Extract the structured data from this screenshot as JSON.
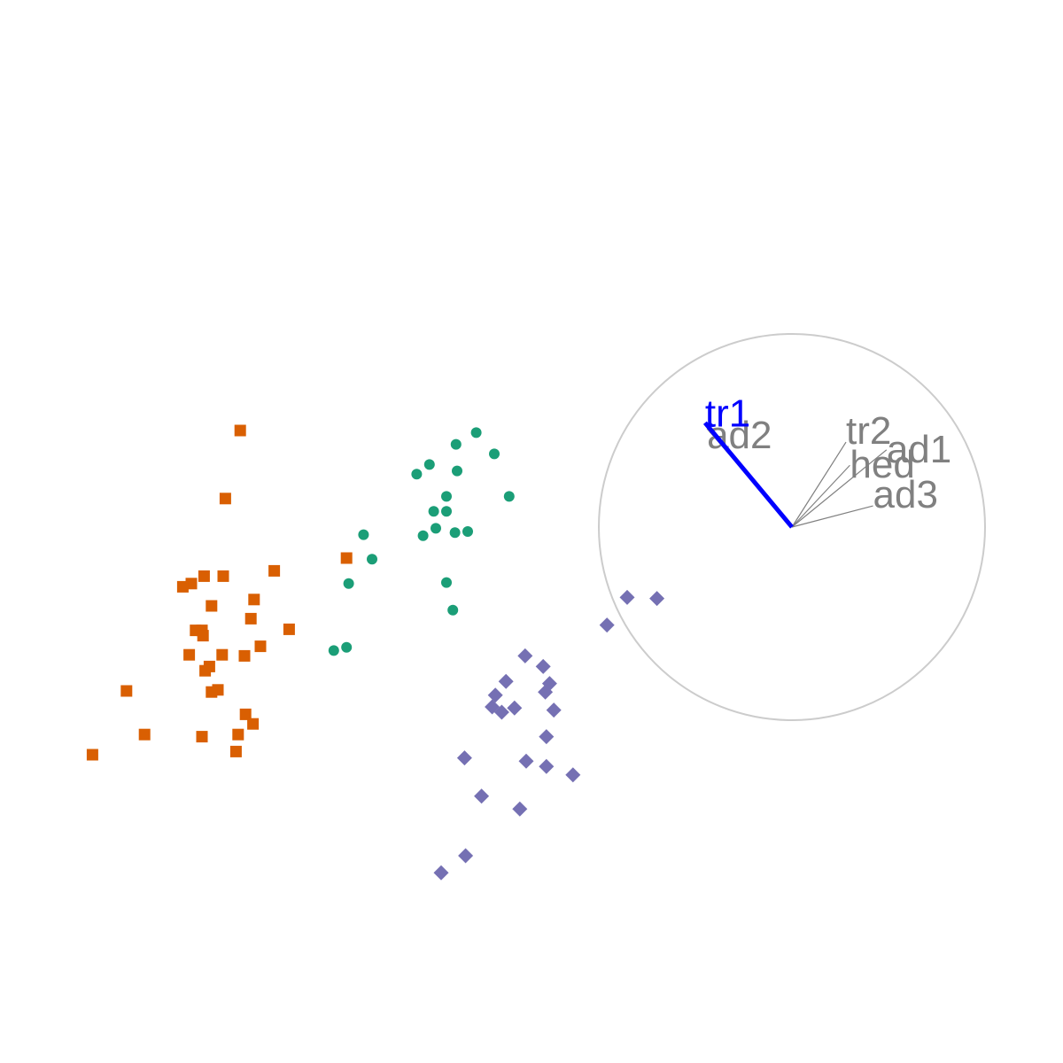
{
  "chart_data": [
    {
      "type": "scatter",
      "title": "",
      "xlabel": "",
      "ylabel": "",
      "grid": false,
      "legend": "none",
      "series": [
        {
          "marker": "square",
          "color": "#D95F02",
          "points": [
            [
              0.226,
              0.405
            ],
            [
              0.212,
              0.469
            ],
            [
              0.258,
              0.537
            ],
            [
              0.192,
              0.542
            ],
            [
              0.21,
              0.542
            ],
            [
              0.18,
              0.549
            ],
            [
              0.172,
              0.552
            ],
            [
              0.239,
              0.564
            ],
            [
              0.199,
              0.57
            ],
            [
              0.236,
              0.582
            ],
            [
              0.272,
              0.592
            ],
            [
              0.184,
              0.593
            ],
            [
              0.19,
              0.593
            ],
            [
              0.191,
              0.598
            ],
            [
              0.245,
              0.608
            ],
            [
              0.178,
              0.616
            ],
            [
              0.209,
              0.616
            ],
            [
              0.23,
              0.617
            ],
            [
              0.197,
              0.627
            ],
            [
              0.193,
              0.631
            ],
            [
              0.119,
              0.65
            ],
            [
              0.205,
              0.649
            ],
            [
              0.199,
              0.651
            ],
            [
              0.231,
              0.672
            ],
            [
              0.238,
              0.681
            ],
            [
              0.136,
              0.691
            ],
            [
              0.19,
              0.693
            ],
            [
              0.224,
              0.691
            ],
            [
              0.222,
              0.707
            ],
            [
              0.087,
              0.71
            ],
            [
              0.326,
              0.525
            ]
          ]
        },
        {
          "marker": "circle",
          "color": "#1B9E77",
          "points": [
            [
              0.448,
              0.407
            ],
            [
              0.429,
              0.418
            ],
            [
              0.465,
              0.427
            ],
            [
              0.404,
              0.437
            ],
            [
              0.392,
              0.446
            ],
            [
              0.43,
              0.443
            ],
            [
              0.42,
              0.467
            ],
            [
              0.479,
              0.467
            ],
            [
              0.408,
              0.481
            ],
            [
              0.42,
              0.481
            ],
            [
              0.41,
              0.497
            ],
            [
              0.428,
              0.501
            ],
            [
              0.44,
              0.5
            ],
            [
              0.398,
              0.504
            ],
            [
              0.342,
              0.503
            ],
            [
              0.35,
              0.526
            ],
            [
              0.328,
              0.549
            ],
            [
              0.42,
              0.548
            ],
            [
              0.426,
              0.574
            ],
            [
              0.326,
              0.609
            ],
            [
              0.314,
              0.612
            ]
          ]
        },
        {
          "marker": "diamond",
          "color": "#7570B3",
          "points": [
            [
              0.59,
              0.562
            ],
            [
              0.618,
              0.563
            ],
            [
              0.571,
              0.588
            ],
            [
              0.494,
              0.617
            ],
            [
              0.511,
              0.627
            ],
            [
              0.476,
              0.641
            ],
            [
              0.517,
              0.643
            ],
            [
              0.513,
              0.651
            ],
            [
              0.466,
              0.654
            ],
            [
              0.463,
              0.665
            ],
            [
              0.484,
              0.666
            ],
            [
              0.472,
              0.67
            ],
            [
              0.521,
              0.668
            ],
            [
              0.514,
              0.693
            ],
            [
              0.437,
              0.713
            ],
            [
              0.495,
              0.716
            ],
            [
              0.514,
              0.721
            ],
            [
              0.539,
              0.729
            ],
            [
              0.453,
              0.749
            ],
            [
              0.489,
              0.761
            ],
            [
              0.438,
              0.805
            ],
            [
              0.415,
              0.821
            ]
          ]
        }
      ]
    },
    {
      "type": "axes-circle",
      "title": "",
      "highlight_color": "#0000FF",
      "axis_color": "#808080",
      "circle_color": "#CCCCCC",
      "axes": [
        {
          "name": "tr1",
          "x": -0.45,
          "y": 0.54,
          "highlighted": true
        },
        {
          "name": "ad2",
          "x": -0.44,
          "y": 0.51,
          "highlighted": false
        },
        {
          "name": "tr2",
          "x": 0.28,
          "y": 0.44,
          "highlighted": false
        },
        {
          "name": "ad1",
          "x": 0.49,
          "y": 0.4,
          "highlighted": false
        },
        {
          "name": "hed",
          "x": 0.3,
          "y": 0.32,
          "highlighted": false
        },
        {
          "name": "ad3",
          "x": 0.42,
          "y": 0.11,
          "highlighted": false
        }
      ]
    }
  ]
}
